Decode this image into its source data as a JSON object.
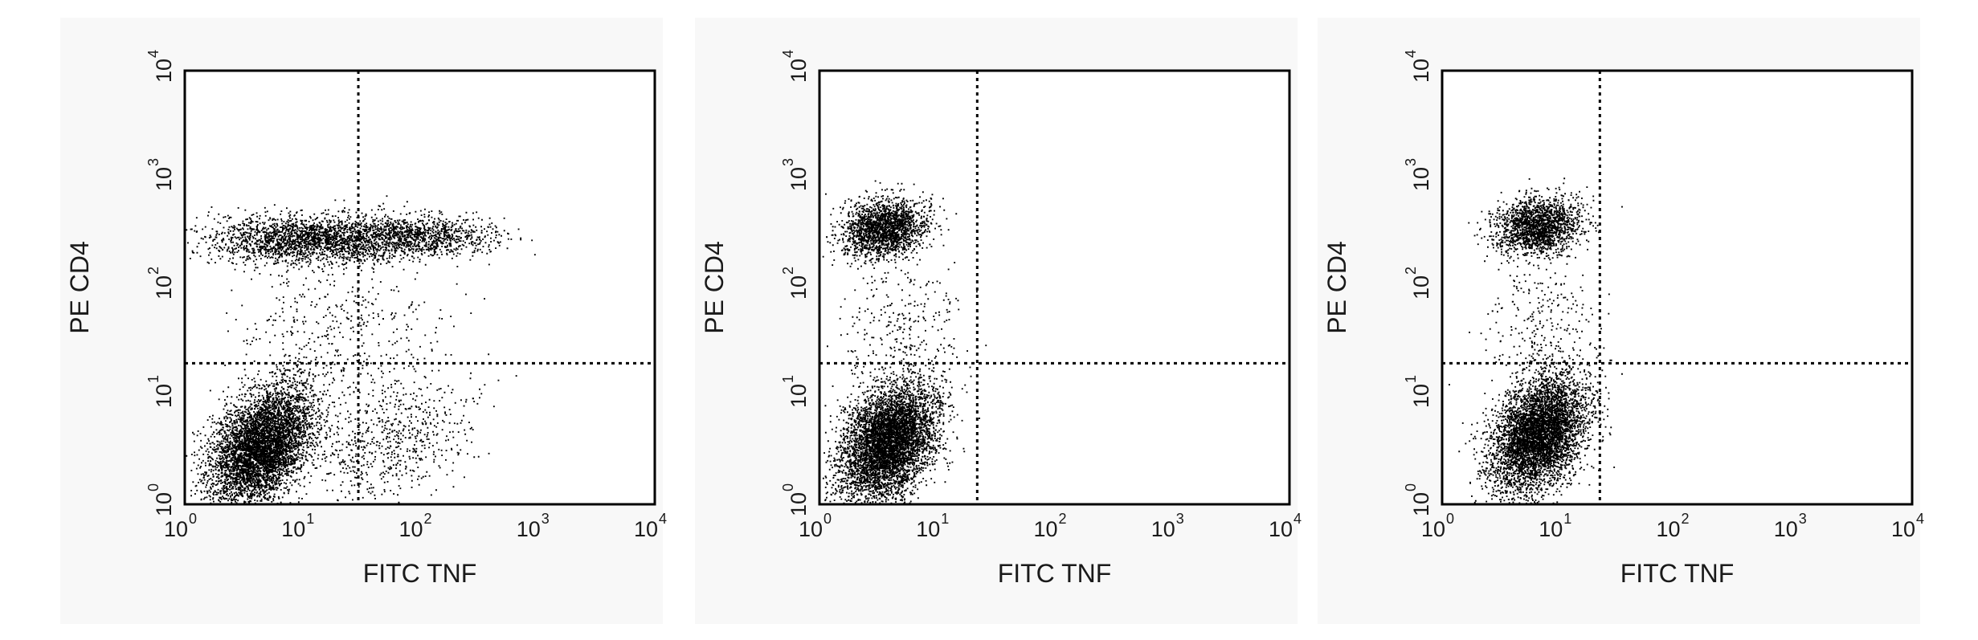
{
  "chart_data": [
    {
      "type": "scatter",
      "panel": "left",
      "xlabel": "FITC TNF",
      "ylabel": "PE CD4",
      "xscale": "log",
      "yscale": "log",
      "xlim": [
        1,
        10000
      ],
      "ylim": [
        1,
        10000
      ],
      "x_ticks": [
        1,
        10,
        100,
        1000,
        10000
      ],
      "y_ticks": [
        1,
        10,
        100,
        1000,
        10000
      ],
      "gates": {
        "x": 30,
        "y": 20
      },
      "populations": [
        {
          "center": [
            4.5,
            3.5
          ],
          "spread": [
            0.22,
            0.25
          ],
          "count": 5200,
          "tilt": 0.5
        },
        {
          "center": [
            12,
            280
          ],
          "spread": [
            0.45,
            0.11
          ],
          "count": 2300,
          "tilt": 0.0
        },
        {
          "center": [
            110,
            300
          ],
          "spread": [
            0.32,
            0.1
          ],
          "count": 900,
          "tilt": 0.0
        },
        {
          "center": [
            60,
            4
          ],
          "spread": [
            0.35,
            0.28
          ],
          "count": 650,
          "tilt": 0.2
        },
        {
          "center": [
            20,
            40
          ],
          "spread": [
            0.45,
            0.32
          ],
          "count": 380,
          "tilt": 0.0
        }
      ]
    },
    {
      "type": "scatter",
      "panel": "middle",
      "xlabel": "FITC TNF",
      "ylabel": "PE CD4",
      "xscale": "log",
      "yscale": "log",
      "xlim": [
        1,
        10000
      ],
      "ylim": [
        1,
        10000
      ],
      "x_ticks": [
        1,
        10,
        100,
        1000,
        10000
      ],
      "y_ticks": [
        1,
        10,
        100,
        1000,
        10000
      ],
      "gates": {
        "x": 22,
        "y": 20
      },
      "populations": [
        {
          "center": [
            3.8,
            3.8
          ],
          "spread": [
            0.2,
            0.25
          ],
          "count": 5400,
          "tilt": 0.45
        },
        {
          "center": [
            3.5,
            350
          ],
          "spread": [
            0.18,
            0.13
          ],
          "count": 1900,
          "tilt": 0.1
        },
        {
          "center": [
            5,
            40
          ],
          "spread": [
            0.25,
            0.35
          ],
          "count": 300,
          "tilt": 0.0
        }
      ]
    },
    {
      "type": "scatter",
      "panel": "right",
      "xlabel": "FITC TNF",
      "ylabel": "PE CD4",
      "xscale": "log",
      "yscale": "log",
      "xlim": [
        1,
        10000
      ],
      "ylim": [
        1,
        10000
      ],
      "x_ticks": [
        1,
        10,
        100,
        1000,
        10000
      ],
      "y_ticks": [
        1,
        10,
        100,
        1000,
        10000
      ],
      "gates": {
        "x": 22,
        "y": 20
      },
      "populations": [
        {
          "center": [
            6.5,
            4.5
          ],
          "spread": [
            0.2,
            0.25
          ],
          "count": 5000,
          "tilt": 0.45
        },
        {
          "center": [
            6.5,
            380
          ],
          "spread": [
            0.18,
            0.13
          ],
          "count": 1800,
          "tilt": 0.1
        },
        {
          "center": [
            7,
            45
          ],
          "spread": [
            0.25,
            0.35
          ],
          "count": 280,
          "tilt": 0.0
        }
      ]
    }
  ],
  "colors": {
    "dots": "#000000",
    "panel_background": "#f8f8f8",
    "plot_area": "#ffffff",
    "frame": "#000000"
  }
}
